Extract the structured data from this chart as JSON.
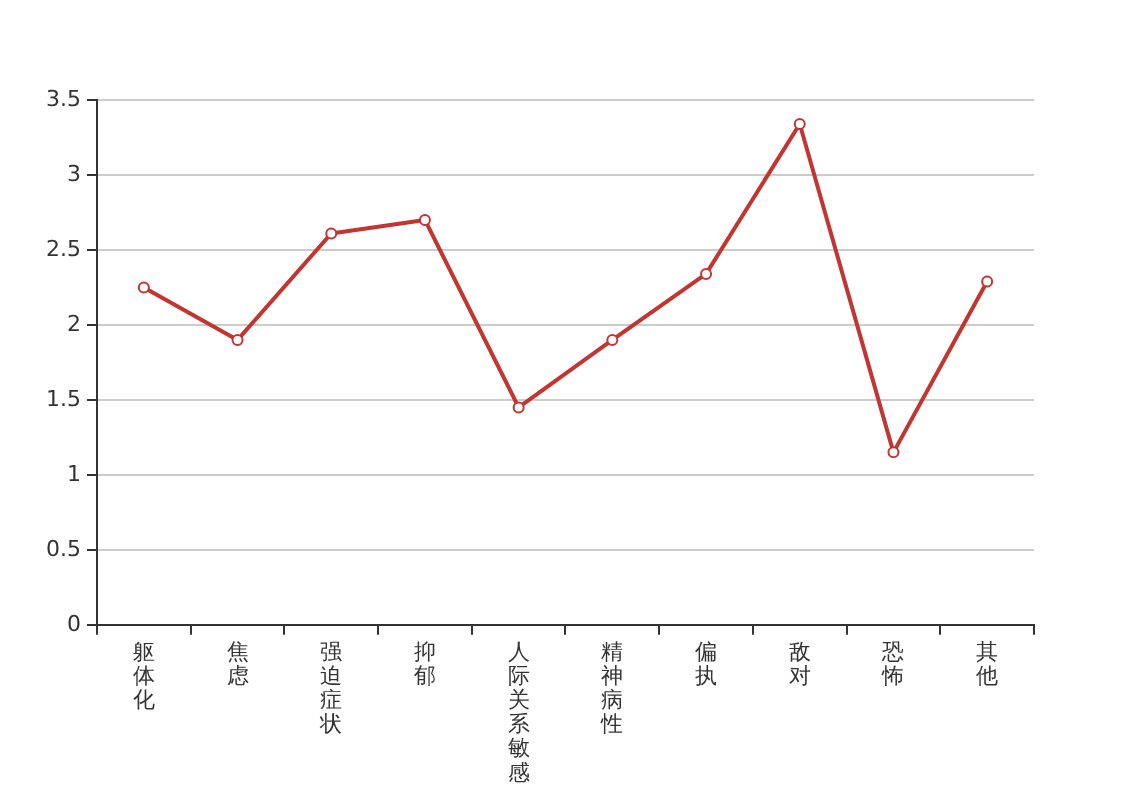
{
  "chart_data": {
    "type": "line",
    "categories": [
      "躯体化",
      "焦虑",
      "强迫症状",
      "抑郁",
      "人际关系敏感",
      "精神病性",
      "偏执",
      "敌对",
      "恐怖",
      "其他"
    ],
    "series": [
      {
        "color": "#c23531",
        "values": [
          2.25,
          1.9,
          2.61,
          2.7,
          1.45,
          1.9,
          2.34,
          3.34,
          1.15,
          2.29
        ]
      }
    ],
    "ylim": [
      0,
      3.5
    ],
    "yticks": [
      0,
      0.5,
      1,
      1.5,
      2,
      2.5,
      3,
      3.5
    ],
    "grid": "y",
    "legend": false,
    "marker": "circle",
    "line_style": "solid"
  }
}
